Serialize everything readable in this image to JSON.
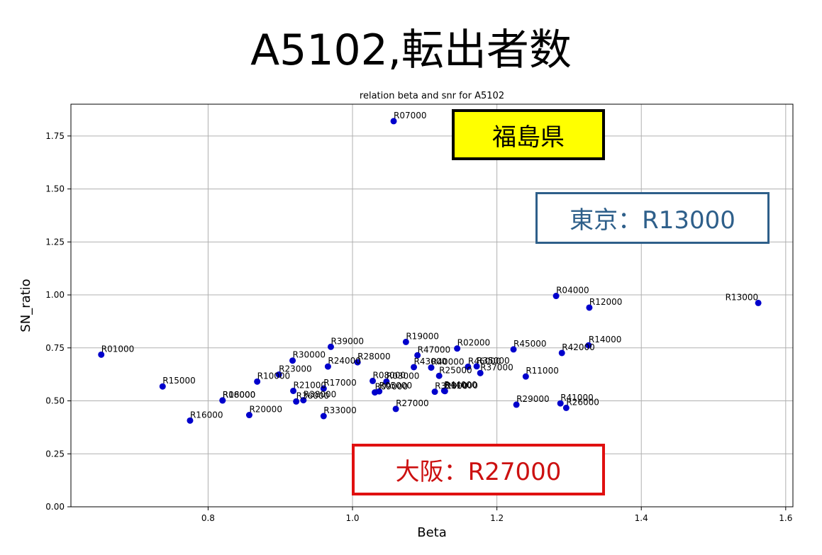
{
  "slide_title": "A5102,転出者数",
  "callouts": {
    "fukushima": "福島県",
    "tokyo": "東京：R13000",
    "osaka": "大阪：R27000"
  },
  "colors": {
    "point": "#0000cc",
    "grid": "#b0b0b0",
    "fukushima_bg": "#ffff00",
    "tokyo_border": "#2e5f8a",
    "osaka_border": "#e01010"
  },
  "chart_data": {
    "type": "scatter",
    "title": "relation beta and snr for A5102",
    "xlabel": "Beta",
    "ylabel": "SN_ratio",
    "xlim": [
      0.61,
      1.61
    ],
    "ylim": [
      0,
      1.9
    ],
    "xticks": [
      0.8,
      1.0,
      1.2,
      1.4,
      1.6
    ],
    "xtick_labels": [
      "0.8",
      "1.0",
      "1.2",
      "1.4",
      "1.6"
    ],
    "yticks": [
      0.0,
      0.25,
      0.5,
      0.75,
      1.0,
      1.25,
      1.5,
      1.75
    ],
    "ytick_labels": [
      "0.00",
      "0.25",
      "0.50",
      "0.75",
      "1.00",
      "1.25",
      "1.50",
      "1.75"
    ],
    "grid": true,
    "points": [
      {
        "label": "R01000",
        "x": 0.652,
        "y": 0.718
      },
      {
        "label": "R04000",
        "x": 1.282,
        "y": 0.995
      },
      {
        "label": "R06000",
        "x": 0.82,
        "y": 0.502
      },
      {
        "label": "R07000",
        "x": 1.057,
        "y": 1.82
      },
      {
        "label": "R09000",
        "x": 1.031,
        "y": 0.54
      },
      {
        "label": "R02000",
        "x": 1.145,
        "y": 0.747
      },
      {
        "label": "R10000",
        "x": 0.868,
        "y": 0.591
      },
      {
        "label": "R11000",
        "x": 1.24,
        "y": 0.615
      },
      {
        "label": "R12000",
        "x": 1.328,
        "y": 0.94
      },
      {
        "label": "R13000",
        "x": 1.562,
        "y": 0.962
      },
      {
        "label": "R14000",
        "x": 1.327,
        "y": 0.762
      },
      {
        "label": "R15000",
        "x": 0.737,
        "y": 0.568
      },
      {
        "label": "R16000",
        "x": 0.775,
        "y": 0.407
      },
      {
        "label": "R17000",
        "x": 0.96,
        "y": 0.558
      },
      {
        "label": "R18000",
        "x": 0.82,
        "y": 0.502
      },
      {
        "label": "R19000",
        "x": 1.074,
        "y": 0.778
      },
      {
        "label": "R20000",
        "x": 0.857,
        "y": 0.433
      },
      {
        "label": "R21000",
        "x": 0.918,
        "y": 0.547
      },
      {
        "label": "R23000",
        "x": 0.898,
        "y": 0.624
      },
      {
        "label": "R24000",
        "x": 0.966,
        "y": 0.662
      },
      {
        "label": "R25000",
        "x": 1.12,
        "y": 0.618
      },
      {
        "label": "R26000",
        "x": 1.296,
        "y": 0.467
      },
      {
        "label": "R27000",
        "x": 1.06,
        "y": 0.462
      },
      {
        "label": "R28000",
        "x": 1.007,
        "y": 0.682
      },
      {
        "label": "R29000",
        "x": 1.227,
        "y": 0.482
      },
      {
        "label": "R30000",
        "x": 0.917,
        "y": 0.69
      },
      {
        "label": "R31000",
        "x": 1.128,
        "y": 0.546
      },
      {
        "label": "R32000",
        "x": 1.114,
        "y": 0.543
      },
      {
        "label": "R33000",
        "x": 0.96,
        "y": 0.428
      },
      {
        "label": "R35000",
        "x": 1.172,
        "y": 0.663
      },
      {
        "label": "R36000",
        "x": 0.922,
        "y": 0.497
      },
      {
        "label": "R37000",
        "x": 1.177,
        "y": 0.631
      },
      {
        "label": "R38000",
        "x": 0.932,
        "y": 0.503
      },
      {
        "label": "R39000",
        "x": 0.97,
        "y": 0.755
      },
      {
        "label": "R40000",
        "x": 1.109,
        "y": 0.657
      },
      {
        "label": "R41000",
        "x": 1.288,
        "y": 0.488
      },
      {
        "label": "R42000",
        "x": 1.29,
        "y": 0.726
      },
      {
        "label": "R43000",
        "x": 1.085,
        "y": 0.659
      },
      {
        "label": "R44000",
        "x": 1.127,
        "y": 0.548
      },
      {
        "label": "R45000",
        "x": 1.223,
        "y": 0.743
      },
      {
        "label": "R46000",
        "x": 1.16,
        "y": 0.661
      },
      {
        "label": "R47000",
        "x": 1.09,
        "y": 0.715
      },
      {
        "label": "R05000",
        "x": 1.037,
        "y": 0.545
      },
      {
        "label": "R08000",
        "x": 1.028,
        "y": 0.594
      },
      {
        "label": "R03000",
        "x": 1.047,
        "y": 0.591
      }
    ]
  }
}
